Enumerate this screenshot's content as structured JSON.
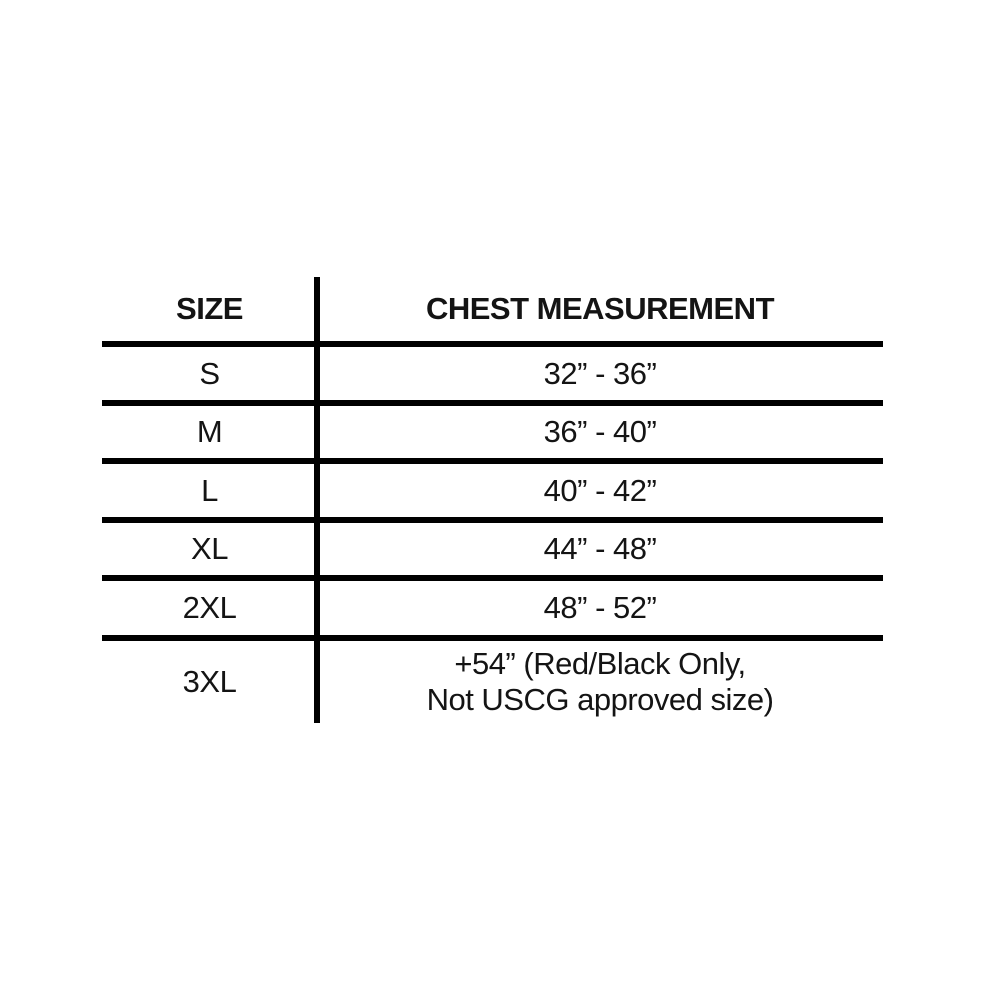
{
  "chart_data": {
    "type": "table",
    "title": "",
    "columns": [
      "SIZE",
      "CHEST MEASUREMENT"
    ],
    "rows": [
      [
        "S",
        "32” - 36”"
      ],
      [
        "M",
        "36” - 40”"
      ],
      [
        "L",
        "40” - 42”"
      ],
      [
        "XL",
        "44” - 48”"
      ],
      [
        "2XL",
        "48” - 52”"
      ],
      [
        "3XL",
        "+54” (Red/Black Only,\nNot USCG approved size)"
      ]
    ],
    "layout": {
      "grid": "horizontal rules between all rows except after last; single vertical divider between columns; no outer border",
      "line_color": "#000000",
      "text_color": "#141414",
      "background": "#ffffff"
    }
  }
}
